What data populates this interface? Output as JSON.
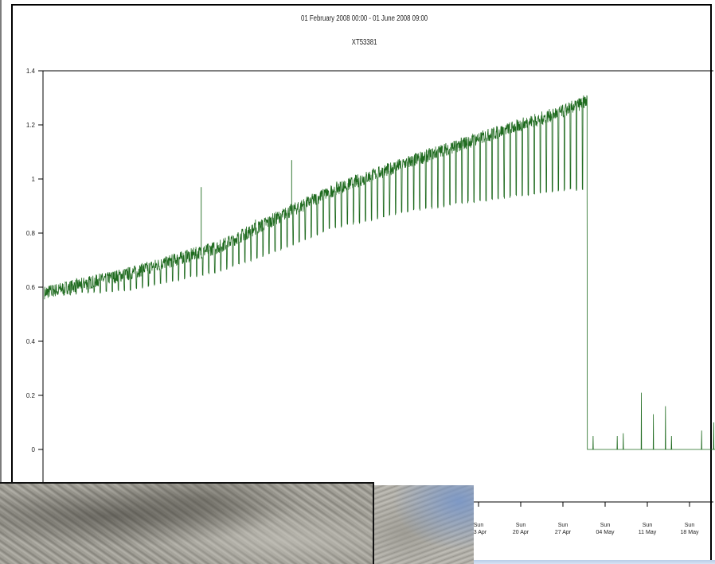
{
  "header": {
    "date_range": "01 February 2008 00:00 - 01 June 2008 09:00",
    "series_id": "XT53381"
  },
  "colors": {
    "series": "#1f6b1f",
    "axis": "#000000",
    "frame": "#000000"
  },
  "chart_data": {
    "type": "line",
    "title": "XT53381",
    "subtitle": "01 February 2008 00:00 - 01 June 2008 09:00",
    "ylim": [
      -0.1,
      1.4
    ],
    "y_ticks": [
      "1.4",
      "1.2",
      "1",
      "0.8",
      "0.6",
      "0.4",
      "0.2",
      "0"
    ],
    "y_tick_values": [
      1.4,
      1.2,
      1,
      0.8,
      0.6,
      0.4,
      0.2,
      0
    ],
    "x_ticks": [
      {
        "top": "Sun",
        "bottom": "13 Apr"
      },
      {
        "top": "Sun",
        "bottom": "20 Apr"
      },
      {
        "top": "Sun",
        "bottom": "27 Apr"
      },
      {
        "top": "Sun",
        "bottom": "04 May"
      },
      {
        "top": "Sun",
        "bottom": "11 May"
      },
      {
        "top": "Sun",
        "bottom": "18 May"
      }
    ],
    "x_tick_dates": [
      "2008-04-13",
      "2008-04-20",
      "2008-04-27",
      "2008-05-04",
      "2008-05-11",
      "2008-05-18"
    ],
    "xlim": [
      "2008-02-01",
      "2008-05-24"
    ],
    "series": [
      {
        "values_daily": {
          "start_date": "2008-02-01",
          "upper_trend": [
            [
              "2008-02-01",
              0.58
            ],
            [
              "2008-02-15",
              0.65
            ],
            [
              "2008-03-01",
              0.75
            ],
            [
              "2008-03-10",
              0.85
            ],
            [
              "2008-03-20",
              0.96
            ],
            [
              "2008-04-01",
              1.06
            ],
            [
              "2008-04-13",
              1.15
            ],
            [
              "2008-04-27",
              1.25
            ],
            [
              "2008-05-01",
              1.29
            ]
          ],
          "lower_dip_trend": [
            [
              "2008-02-01",
              0.57
            ],
            [
              "2008-02-15",
              0.59
            ],
            [
              "2008-03-01",
              0.66
            ],
            [
              "2008-03-10",
              0.73
            ],
            [
              "2008-03-20",
              0.82
            ],
            [
              "2008-04-01",
              0.88
            ],
            [
              "2008-04-13",
              0.92
            ],
            [
              "2008-04-27",
              0.96
            ],
            [
              "2008-05-01",
              0.96
            ]
          ],
          "drop_date": "2008-05-01",
          "after_drop_value": 0.0,
          "after_drop_spikes": [
            [
              "2008-05-01",
              0.2
            ],
            [
              "2008-05-02",
              0.05
            ],
            [
              "2008-05-06",
              0.05
            ],
            [
              "2008-05-07",
              0.06
            ],
            [
              "2008-05-10",
              0.21
            ],
            [
              "2008-05-12",
              0.13
            ],
            [
              "2008-05-14",
              0.16
            ],
            [
              "2008-05-15",
              0.05
            ],
            [
              "2008-05-20",
              0.07
            ],
            [
              "2008-05-22",
              0.1
            ]
          ],
          "notable_spikes": [
            [
              "2008-02-27",
              0.97
            ],
            [
              "2008-03-13",
              1.07
            ],
            [
              "2008-03-07",
              0.85
            ]
          ]
        }
      }
    ]
  }
}
